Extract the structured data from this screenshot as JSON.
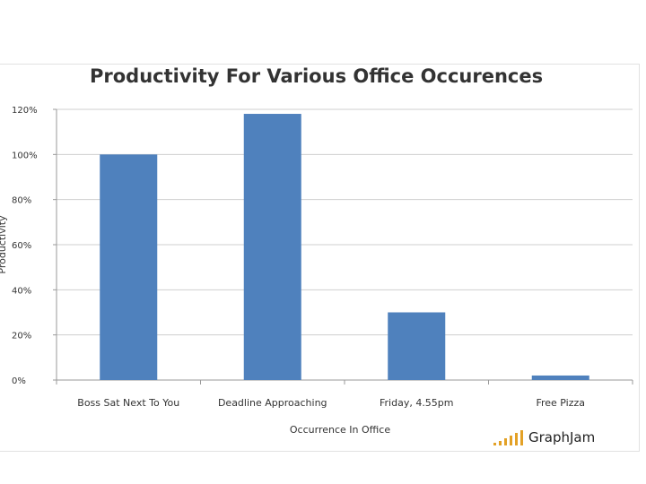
{
  "chart_data": {
    "type": "bar",
    "title": "Productivity For Various Office Occurences",
    "xlabel": "Occurrence In Office",
    "ylabel": "Productivity",
    "categories": [
      "Boss Sat Next To You",
      "Deadline Approaching",
      "Friday, 4.55pm",
      "Free Pizza"
    ],
    "values": [
      100,
      118,
      30,
      2
    ],
    "ylim": [
      0,
      120
    ],
    "y_ticks": [
      0,
      20,
      40,
      60,
      80,
      100,
      120
    ],
    "y_tick_labels": [
      "0%",
      "20%",
      "40%",
      "60%",
      "80%",
      "100%",
      "120%"
    ],
    "bar_color": "#4f81bd",
    "grid": true,
    "legend": "none"
  },
  "branding": {
    "text": "GraphJam",
    "accent_color": "#e3a126"
  }
}
